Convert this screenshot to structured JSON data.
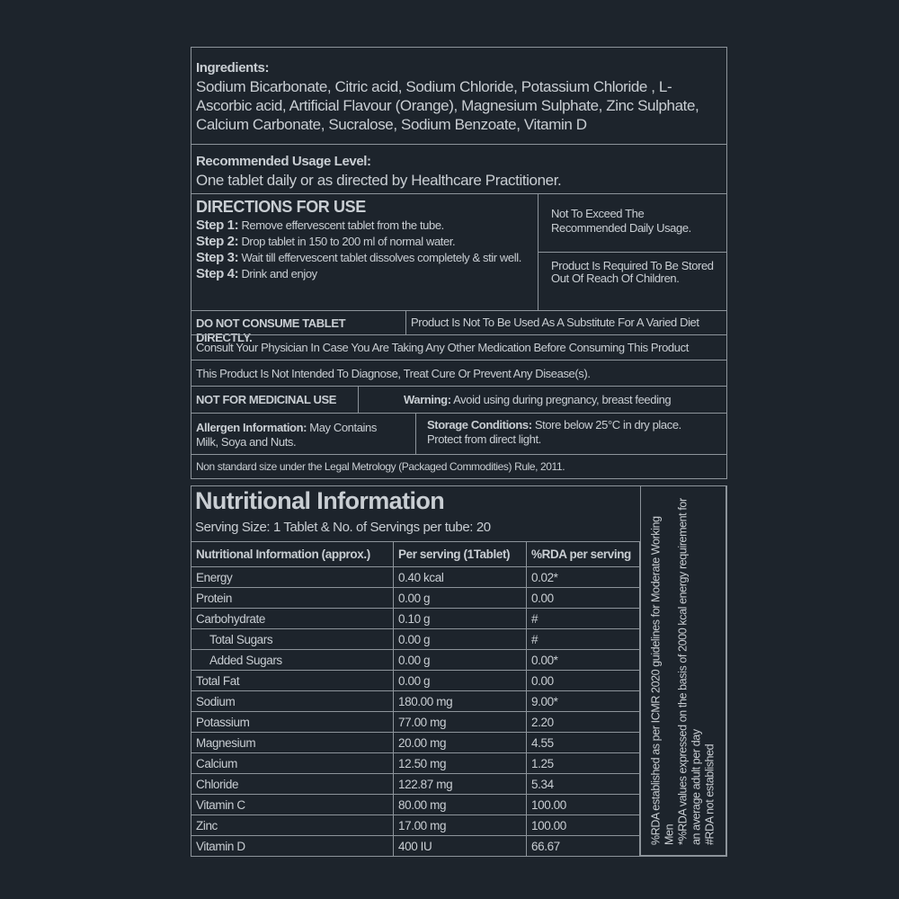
{
  "ingredients": {
    "label": "Ingredients:",
    "text": "Sodium Bicarbonate, Citric acid, Sodium Chloride, Potassium Chloride , L-Ascorbic acid, Artificial Flavour (Orange), Magnesium Sulphate, Zinc Sulphate, Calcium Carbonate, Sucralose, Sodium Benzoate, Vitamin D"
  },
  "usage": {
    "label": "Recommended Usage Level:",
    "text": "One tablet daily or as directed by Healthcare Practitioner."
  },
  "directions": {
    "title": "DIRECTIONS FOR USE",
    "steps": [
      {
        "label": "Step 1:",
        "text": "Remove effervescent tablet from the tube."
      },
      {
        "label": "Step 2:",
        "text": "Drop tablet in 150 to 200 ml of normal water."
      },
      {
        "label": "Step 3:",
        "text": "Wait till effervescent tablet dissolves completely & stir well."
      },
      {
        "label": "Step 4:",
        "text": "Drink and enjoy"
      }
    ]
  },
  "notes": {
    "not_exceed": "Not To Exceed The Recommended Daily Usage.",
    "reach": "Product Is Required To Be Stored Out Of Reach Of Children.",
    "do_not_consume": "DO NOT CONSUME TABLET DIRECTLY.",
    "substitute": "Product Is Not To Be Used As A Substitute For A Varied Diet",
    "consult": "Consult Your Physician In Case You Are Taking Any Other Medication Before Consuming This Product",
    "not_intended": "This Product Is Not Intended To Diagnose, Treat Cure Or Prevent Any Disease(s).",
    "not_medicinal": "NOT FOR MEDICINAL USE",
    "warning_label": "Warning:",
    "warning_text": "Avoid using during pregnancy, breast feeding",
    "allergen_label": "Allergen Information:",
    "allergen_text": "May Contains Milk, Soya and Nuts.",
    "storage_label": "Storage Conditions:",
    "storage_text": "Store below 25°C in dry place. Protect from direct light.",
    "metrology": "Non standard size under the Legal Metrology (Packaged Commodities) Rule, 2011."
  },
  "nutrition": {
    "title": "Nutritional Information",
    "serving": "Serving Size: 1 Tablet & No. of Servings per tube: 20",
    "headers": [
      "Nutritional Information (approx.)",
      "Per serving (1Tablet)",
      "%RDA per serving"
    ],
    "rows": [
      [
        "Energy",
        "0.40 kcal",
        "0.02*"
      ],
      [
        "Protein",
        "0.00 g",
        "0.00"
      ],
      [
        "Carbohydrate",
        "0.10 g",
        "#"
      ],
      [
        "Total Sugars",
        "0.00 g",
        "#"
      ],
      [
        "Added Sugars",
        "0.00 g",
        "0.00*"
      ],
      [
        "Total Fat",
        "0.00 g",
        "0.00"
      ],
      [
        "Sodium",
        "180.00 mg",
        "9.00*"
      ],
      [
        "Potassium",
        "77.00 mg",
        "2.20"
      ],
      [
        "Magnesium",
        "20.00 mg",
        "4.55"
      ],
      [
        "Calcium",
        "12.50 mg",
        "1.25"
      ],
      [
        "Chloride",
        "122.87 mg",
        "5.34"
      ],
      [
        "Vitamin C",
        "80.00 mg",
        "100.00"
      ],
      [
        "Zinc",
        "17.00 mg",
        "100.00"
      ],
      [
        "Vitamin D",
        "400 IU",
        "66.67"
      ]
    ],
    "footnotes": [
      "%RDA established as per ICMR 2020 guidelines for Moderate Working Men",
      "*%RDA values expressed on the basis of 2000 kcal energy requirement for an average adult per day",
      "#RDA not established"
    ]
  }
}
